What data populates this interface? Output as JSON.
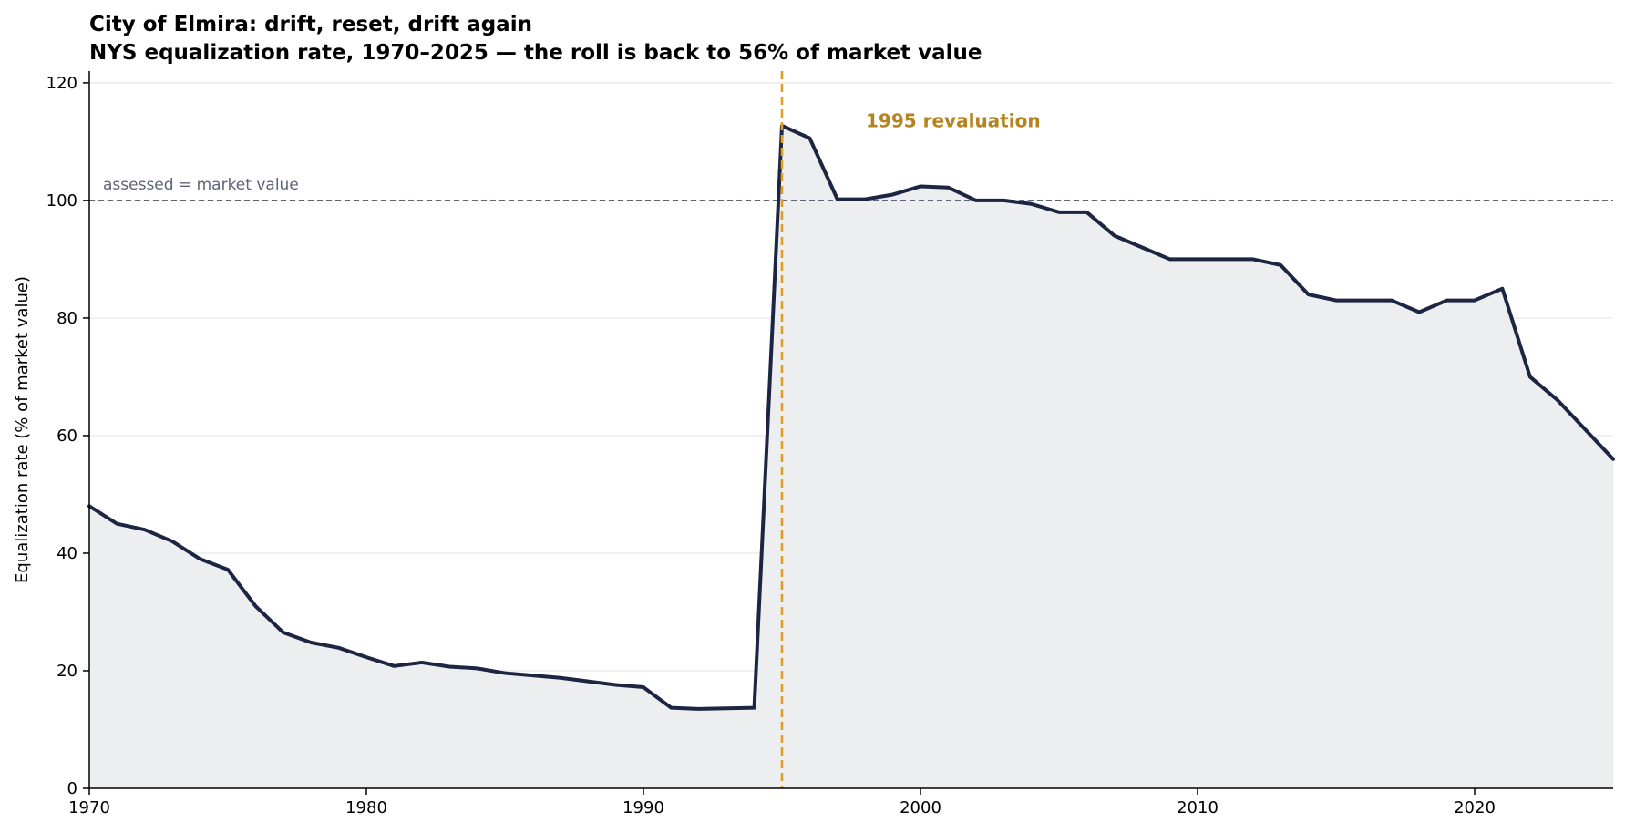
{
  "chart_data": {
    "type": "area",
    "title": "City of Elmira: drift, reset, drift again",
    "subtitle": "NYS equalization rate, 1970–2025 — the roll is back to 56% of market value",
    "xlabel": "",
    "ylabel": "Equalization rate (% of market value)",
    "xlim": [
      1970,
      2025
    ],
    "ylim": [
      0,
      122
    ],
    "xticks": [
      1970,
      1980,
      1990,
      2000,
      2010,
      2020
    ],
    "yticks": [
      0,
      20,
      40,
      60,
      80,
      100,
      120
    ],
    "grid": "horizontal",
    "x": [
      1970,
      1971,
      1972,
      1973,
      1974,
      1975,
      1976,
      1977,
      1978,
      1979,
      1980,
      1981,
      1982,
      1983,
      1984,
      1985,
      1986,
      1987,
      1988,
      1989,
      1990,
      1991,
      1992,
      1993,
      1994,
      1995,
      1996,
      1997,
      1998,
      1999,
      2000,
      2001,
      2002,
      2003,
      2004,
      2005,
      2006,
      2007,
      2008,
      2009,
      2010,
      2011,
      2012,
      2013,
      2014,
      2015,
      2016,
      2017,
      2018,
      2019,
      2020,
      2021,
      2022,
      2023,
      2024,
      2025
    ],
    "series": [
      {
        "values": [
          48,
          45,
          44,
          42,
          39,
          37.2,
          31,
          26.5,
          24.8,
          23.9,
          22.3,
          20.8,
          21.4,
          20.7,
          20.4,
          19.6,
          19.2,
          18.8,
          18.2,
          17.6,
          17.2,
          13.7,
          13.5,
          13.6,
          13.7,
          112.7,
          110.6,
          100.2,
          100.2,
          101,
          102.4,
          102.2,
          100,
          100,
          99.4,
          98,
          98,
          94,
          92,
          90,
          90,
          90,
          90,
          89,
          84,
          83,
          83,
          83,
          81,
          83,
          83,
          85,
          70,
          66,
          61,
          56
        ]
      }
    ],
    "reference_line": {
      "y": 100,
      "label": "assessed = market value"
    },
    "annotation": {
      "x": 1995,
      "label": "1995 revaluation"
    },
    "colors": {
      "line": "#1c2541",
      "fill": "#eceef0",
      "grid": "#e6e6e6",
      "reference": "#4a4e69",
      "reference_text": "#5c6478",
      "annotation": "#e09f1f",
      "annotation_text": "#b5841f",
      "axis": "#000000"
    }
  }
}
